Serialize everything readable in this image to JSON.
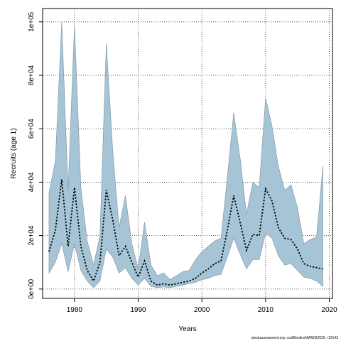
{
  "chart_data": {
    "type": "area",
    "xlabel": "Years",
    "ylabel": "Recruits (age 1)",
    "xlim": [
      1975,
      2020.5
    ],
    "ylim": [
      -3500,
      105000
    ],
    "x_ticks": [
      1980,
      1990,
      2000,
      2010,
      2020
    ],
    "y_ticks": [
      0,
      20000,
      40000,
      60000,
      80000,
      100000
    ],
    "y_tick_labels": [
      "0e+00",
      "2e+04",
      "4e+04",
      "6e+04",
      "8e+04",
      "1e+05"
    ],
    "grid": true,
    "colors": {
      "band": "#a5c5d7",
      "band_edge": "#7f8f9a",
      "line": "#000000"
    },
    "x": [
      1976,
      1977,
      1978,
      1979,
      1980,
      1981,
      1982,
      1983,
      1984,
      1985,
      1986,
      1987,
      1988,
      1989,
      1990,
      1991,
      1992,
      1993,
      1994,
      1995,
      1996,
      1997,
      1998,
      1999,
      2000,
      2001,
      2002,
      2003,
      2004,
      2005,
      2006,
      2007,
      2008,
      2009,
      2010,
      2011,
      2012,
      2013,
      2014,
      2015,
      2016,
      2017,
      2018,
      2019
    ],
    "series": [
      {
        "role": "estimate",
        "values": [
          14000,
          22000,
          41000,
          16000,
          38000,
          16000,
          7000,
          3000,
          10000,
          37000,
          26000,
          12500,
          16000,
          10000,
          4500,
          10500,
          3000,
          1500,
          2000,
          1500,
          2000,
          2500,
          3000,
          4000,
          6000,
          7500,
          9500,
          10500,
          22000,
          35000,
          25000,
          14500,
          20500,
          20000,
          37500,
          33000,
          23000,
          19000,
          18500,
          15000,
          9500,
          8500,
          8000,
          7500
        ]
      },
      {
        "role": "upper",
        "values": [
          36000,
          48000,
          100000,
          37000,
          99000,
          38000,
          18000,
          9000,
          20000,
          92000,
          52000,
          23000,
          35000,
          17000,
          7500,
          25000,
          9000,
          5000,
          6000,
          3500,
          5000,
          6500,
          7000,
          11000,
          14000,
          16000,
          18000,
          19000,
          42000,
          66000,
          49000,
          28000,
          40000,
          38000,
          71500,
          61000,
          46000,
          37000,
          39000,
          30500,
          17000,
          18500,
          19500,
          46000
        ]
      },
      {
        "role": "lower",
        "values": [
          6000,
          10000,
          17000,
          6500,
          17000,
          7000,
          3000,
          500,
          3000,
          15000,
          12000,
          6000,
          8000,
          4000,
          1500,
          4000,
          1000,
          500,
          800,
          500,
          1000,
          1500,
          2000,
          2500,
          3500,
          4000,
          5000,
          5500,
          12000,
          19000,
          13000,
          7500,
          11000,
          11000,
          21000,
          19000,
          12500,
          9000,
          9500,
          7000,
          4500,
          4000,
          3000,
          1000
        ]
      }
    ]
  },
  "footer": "stockassessment.org, codWestInsNWWG2020, r12142"
}
